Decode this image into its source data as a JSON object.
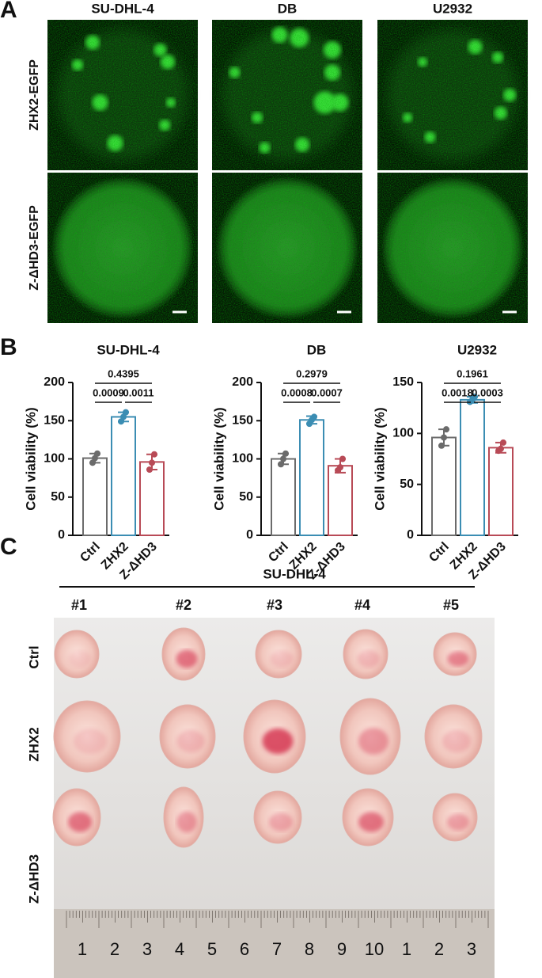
{
  "panel_labels": [
    "A",
    "B",
    "C"
  ],
  "panel_a": {
    "columns": [
      "SU-DHL-4",
      "DB",
      "U2932"
    ],
    "rows": [
      "ZHX2-EGFP",
      "Z-ΔHD3-EGFP"
    ]
  },
  "chart_data": [
    {
      "type": "bar",
      "title": "SU-DHL-4",
      "y_label": "Cell viability (%)",
      "categories": [
        "Ctrl",
        "ZHX2",
        "Z-ΔHD3"
      ],
      "values": [
        101,
        155,
        96
      ],
      "errors": [
        6,
        6,
        10
      ],
      "points": [
        [
          95,
          101,
          107
        ],
        [
          149,
          155,
          161
        ],
        [
          86,
          95,
          106
        ]
      ],
      "colors": [
        "#6b6b6b",
        "#3b8db3",
        "#b84a56"
      ],
      "ylim": [
        0,
        200
      ],
      "yticks": [
        0,
        50,
        100,
        150,
        200
      ],
      "p_values": [
        "0.0009",
        "0.0011",
        "0.4395"
      ]
    },
    {
      "type": "bar",
      "title": "DB",
      "y_label": "Cell viability (%)",
      "categories": [
        "Ctrl",
        "ZHX2",
        "Z-ΔHD3"
      ],
      "values": [
        100,
        151,
        91
      ],
      "errors": [
        7,
        5,
        9
      ],
      "points": [
        [
          93,
          100,
          107
        ],
        [
          146,
          151,
          155
        ],
        [
          85,
          89,
          100
        ]
      ],
      "colors": [
        "#6b6b6b",
        "#3b8db3",
        "#b84a56"
      ],
      "ylim": [
        0,
        200
      ],
      "yticks": [
        0,
        50,
        100,
        150,
        200
      ],
      "p_values": [
        "0.0008",
        "0.0007",
        "0.2979"
      ]
    },
    {
      "type": "bar",
      "title": "U2932",
      "y_label": "Cell viability (%)",
      "categories": [
        "Ctrl",
        "ZHX2",
        "Z-ΔHD3"
      ],
      "values": [
        96,
        133,
        86
      ],
      "errors": [
        8,
        3,
        5
      ],
      "points": [
        [
          88,
          96,
          104
        ],
        [
          131,
          133,
          136
        ],
        [
          83,
          85,
          91
        ]
      ],
      "colors": [
        "#6b6b6b",
        "#3b8db3",
        "#b84a56"
      ],
      "ylim": [
        0,
        150
      ],
      "yticks": [
        0,
        50,
        100,
        150
      ],
      "p_values": [
        "0.0018",
        "0.0003",
        "0.1961"
      ]
    }
  ],
  "panel_c": {
    "title": "SU-DHL-4",
    "columns": [
      "#1",
      "#2",
      "#3",
      "#4",
      "#5"
    ],
    "rows": [
      "Ctrl",
      "ZHX2",
      "Z-ΔHD3"
    ],
    "ruler_labels": [
      "1",
      "2",
      "3",
      "4",
      "5",
      "6",
      "7",
      "8",
      "9",
      "10",
      "1",
      "2",
      "3"
    ]
  }
}
